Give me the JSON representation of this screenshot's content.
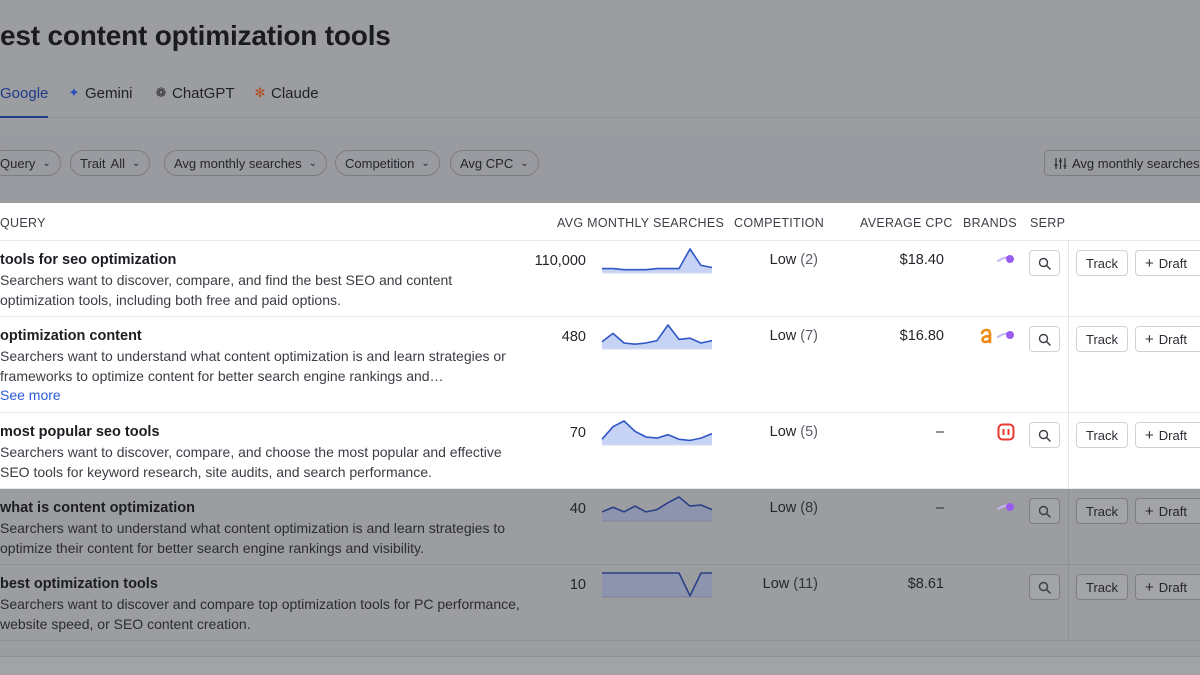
{
  "page_title": "est content optimization tools",
  "tabs": [
    {
      "label": "Google",
      "icon": "google-icon",
      "active": true
    },
    {
      "label": "Gemini",
      "icon": "gemini-sparkle-icon",
      "active": false
    },
    {
      "label": "ChatGPT",
      "icon": "chatgpt-icon",
      "active": false
    },
    {
      "label": "Claude",
      "icon": "claude-asterisk-icon",
      "active": false
    }
  ],
  "filters": {
    "query": "Query",
    "trait_label": "Trait",
    "trait_value": "All",
    "avg_monthly": "Avg monthly searches",
    "competition": "Competition",
    "avg_cpc": "Avg CPC",
    "sort": "Avg monthly searches"
  },
  "columns": {
    "query": "QUERY",
    "avg_monthly": "AVG MONTHLY SEARCHES",
    "competition": "COMPETITION",
    "average_cpc": "AVERAGE CPC",
    "brands": "BRANDS",
    "serp": "SERP"
  },
  "buttons": {
    "track": "Track",
    "draft": "Draft"
  },
  "see_more": "See more",
  "colors": {
    "accent": "#1e3c88",
    "spark_line": "#2f56c6",
    "spark_fill": "#c7d3f4",
    "link": "#2a5bd7"
  },
  "rows": [
    {
      "title": "tools for seo optimization",
      "desc": "Searchers want to discover, compare, and find the best SEO and content optimization tools, including both free and paid options.",
      "volume": "110,000",
      "comp_label": "Low",
      "comp_num": "(2)",
      "cpc": "$18.40",
      "brands": [
        "purple-comet-icon"
      ],
      "trend": [
        4,
        4,
        3,
        3,
        3,
        4,
        4,
        4,
        22,
        7,
        5
      ]
    },
    {
      "title": "optimization content",
      "desc": "Searchers want to understand what content optimization is and learn strategies or frameworks to optimize content for better search engine rankings and…",
      "see_more": true,
      "volume": "480",
      "comp_label": "Low",
      "comp_num": "(7)",
      "cpc": "$16.80",
      "brands": [
        "orange-a-icon",
        "purple-comet-icon"
      ],
      "trend": [
        6,
        13,
        5,
        4,
        5,
        7,
        20,
        8,
        9,
        5,
        7
      ]
    },
    {
      "title": "most popular seo tools",
      "desc": "Searchers want to discover, compare, and choose the most popular and effective SEO tools for keyword research, site audits, and search performance.",
      "volume": "70",
      "comp_label": "Low",
      "comp_num": "(5)",
      "cpc": "–",
      "brands": [
        "red-bracket-icon"
      ],
      "trend": [
        5,
        16,
        21,
        12,
        7,
        6,
        9,
        5,
        4,
        6,
        10
      ]
    },
    {
      "title": "what is content optimization",
      "desc": "Searchers want to understand what content optimization is and learn strategies to optimize their content for better search engine rankings and visibility.",
      "volume": "40",
      "comp_label": "Low",
      "comp_num": "(8)",
      "cpc": "–",
      "brands": [
        "purple-comet-icon"
      ],
      "trend": [
        8,
        12,
        8,
        13,
        8,
        10,
        16,
        21,
        13,
        14,
        10
      ]
    },
    {
      "title": "best optimization tools",
      "desc": "Searchers want to discover and compare top optimization tools for PC performance, website speed, or SEO content creation.",
      "volume": "10",
      "comp_label": "Low",
      "comp_num": "(11)",
      "cpc": "$8.61",
      "brands": [],
      "trend": [
        20,
        20,
        20,
        20,
        20,
        20,
        20,
        20,
        1,
        20,
        20
      ]
    }
  ]
}
